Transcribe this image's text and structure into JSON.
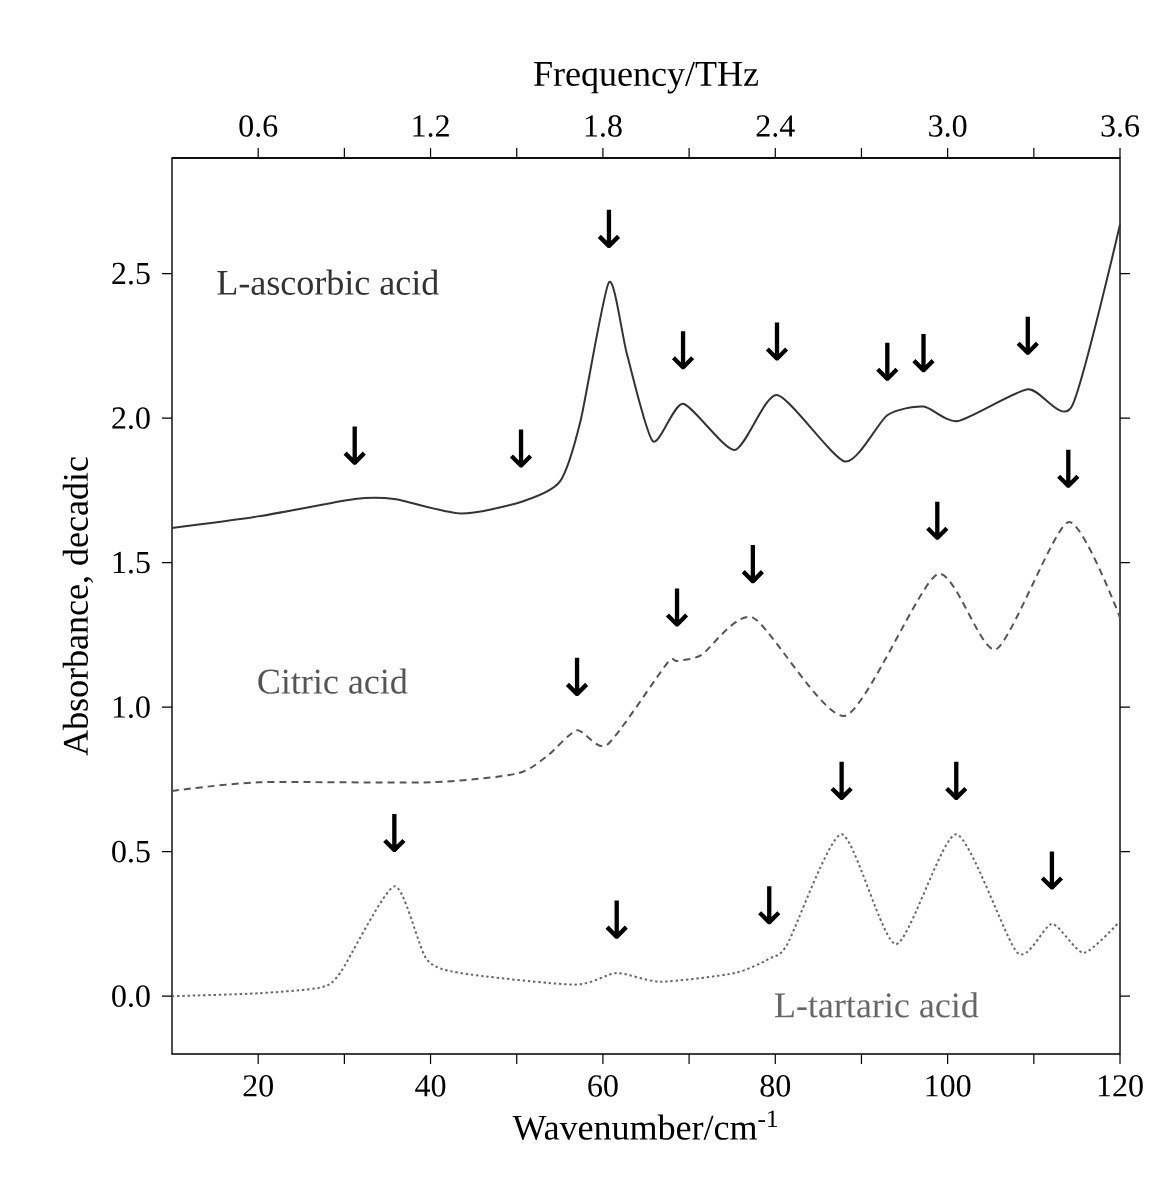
{
  "chart_data": {
    "type": "line",
    "xlabel": "Wavenumber/cm$^{-1}$",
    "ylabel": "Absorbance, decadic",
    "x2label": "Frequency/THz",
    "xlim": [
      10,
      120
    ],
    "xticks": [
      20,
      {
        "value": 30,
        "label": null
      },
      40,
      {
        "value": 50,
        "label": null
      },
      60,
      {
        "value": 70,
        "label": null
      },
      80,
      {
        "value": 90,
        "label": null
      },
      100,
      {
        "value": 110,
        "label": null
      },
      120
    ],
    "x2lim": [
      0.3,
      3.6
    ],
    "x2ticks": [
      {
        "value": 0.6,
        "label": "0.6"
      },
      {
        "value": 0.9,
        "label": null
      },
      {
        "value": 1.2,
        "label": "1.2"
      },
      {
        "value": 1.5,
        "label": null
      },
      {
        "value": 1.8,
        "label": "1.8"
      },
      {
        "value": 2.1,
        "label": null
      },
      {
        "value": 2.4,
        "label": "2.4"
      },
      {
        "value": 2.7,
        "label": null
      },
      {
        "value": 3.0,
        "label": "3.0"
      },
      {
        "value": 3.3,
        "label": null
      },
      {
        "value": 3.6,
        "label": "3.6"
      }
    ],
    "ylim": [
      -0.2,
      2.9
    ],
    "yticks": [
      {
        "value": 0,
        "label": "0.0"
      },
      0.5,
      {
        "value": 1,
        "label": "1.0"
      },
      1.5,
      {
        "value": 2,
        "label": "2.0"
      },
      2.5
    ],
    "series": [
      {
        "name": "L-ascorbic acid",
        "color": "#333333",
        "line_style": "solid",
        "x": [
          10,
          20,
          31.2,
          35.8,
          43.5,
          50.5,
          55,
          57.4,
          60.7,
          62.8,
          65.8,
          69.3,
          75.3,
          80.2,
          88.1,
          93,
          97.2,
          101.2,
          109.3,
          114.4,
          120
        ],
        "values": [
          1.62,
          1.66,
          1.72,
          1.72,
          1.67,
          1.71,
          1.78,
          1.99,
          2.47,
          2.22,
          1.92,
          2.05,
          1.89,
          2.08,
          1.85,
          2.01,
          2.04,
          1.99,
          2.1,
          2.04,
          2.67
        ]
      },
      {
        "name": "Citric acid",
        "color": "#555555",
        "line_style": "dashed",
        "x": [
          10,
          20,
          40,
          50,
          53.5,
          57,
          60.5,
          67.4,
          68.6,
          71.4,
          77.4,
          88.1,
          98.8,
          105.6,
          114,
          120
        ],
        "values": [
          0.71,
          0.74,
          0.74,
          0.77,
          0.83,
          0.92,
          0.87,
          1.15,
          1.16,
          1.18,
          1.31,
          0.97,
          1.46,
          1.2,
          1.64,
          1.31
        ]
      },
      {
        "name": "L-tartaric acid",
        "color": "#666666",
        "line_style": "dotted",
        "x": [
          10,
          20,
          27.2,
          29.5,
          35.8,
          39.5,
          43.5,
          56.7,
          61.6,
          66.7,
          75.3,
          79.3,
          81.4,
          87.7,
          94,
          101,
          108.1,
          112.1,
          115.8,
          120
        ],
        "values": [
          0.0,
          0.01,
          0.03,
          0.08,
          0.38,
          0.13,
          0.08,
          0.04,
          0.08,
          0.05,
          0.08,
          0.13,
          0.18,
          0.56,
          0.18,
          0.56,
          0.15,
          0.25,
          0.15,
          0.26
        ]
      }
    ],
    "annotations": [
      {
        "text": "↓",
        "x": 31.2,
        "y": 1.72
      },
      {
        "text": "↓",
        "x": 50.5,
        "y": 1.71
      },
      {
        "text": "↓",
        "x": 60.7,
        "y": 2.47
      },
      {
        "text": "↓",
        "x": 69.3,
        "y": 2.05
      },
      {
        "text": "↓",
        "x": 80.2,
        "y": 2.08
      },
      {
        "text": "↓",
        "x": 93,
        "y": 2.01
      },
      {
        "text": "↓",
        "x": 97.2,
        "y": 2.04
      },
      {
        "text": "↓",
        "x": 109.3,
        "y": 2.1
      },
      {
        "text": "↓",
        "x": 57,
        "y": 0.92
      },
      {
        "text": "↓",
        "x": 68.6,
        "y": 1.16
      },
      {
        "text": "↓",
        "x": 77.4,
        "y": 1.31
      },
      {
        "text": "↓",
        "x": 98.8,
        "y": 1.46
      },
      {
        "text": "↓",
        "x": 114,
        "y": 1.64
      },
      {
        "text": "↓",
        "x": 35.8,
        "y": 0.38
      },
      {
        "text": "↓",
        "x": 61.6,
        "y": 0.08
      },
      {
        "text": "↓",
        "x": 79.3,
        "y": 0.13
      },
      {
        "text": "↓",
        "x": 87.7,
        "y": 0.56
      },
      {
        "text": "↓",
        "x": 101,
        "y": 0.56
      },
      {
        "text": "↓",
        "x": 112.1,
        "y": 0.25
      }
    ],
    "grid": false,
    "legend": false
  }
}
